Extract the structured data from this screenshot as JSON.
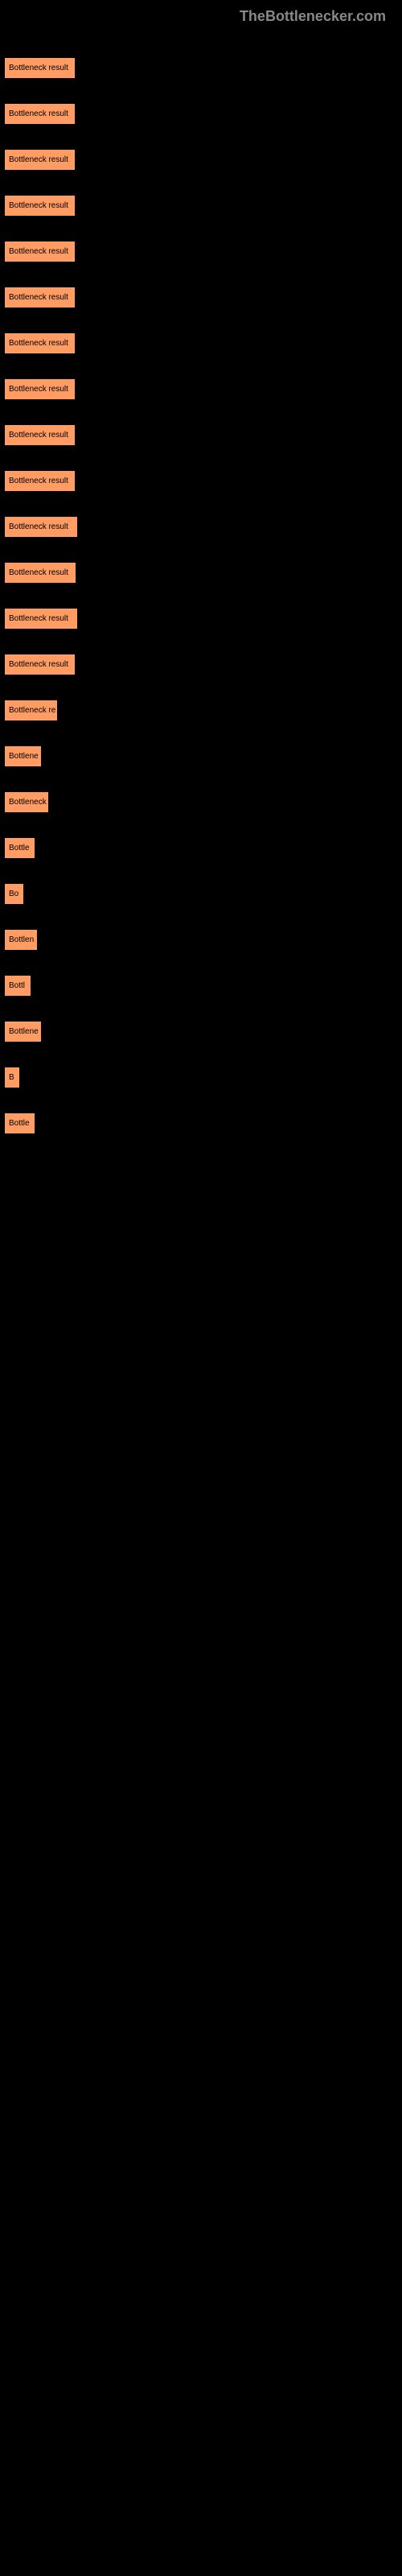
{
  "header": {
    "logo": "TheBottlenecker.com"
  },
  "chart": {
    "type": "bar",
    "bar_color": "#ff9c64",
    "background_color": "#000000",
    "text_color": "#000000",
    "font_size": 10,
    "bars": [
      {
        "label": "Bottleneck result",
        "width": 77
      },
      {
        "label": "Bottleneck result",
        "width": 77
      },
      {
        "label": "Bottleneck result",
        "width": 77
      },
      {
        "label": "Bottleneck result",
        "width": 77
      },
      {
        "label": "Bottleneck result",
        "width": 77
      },
      {
        "label": "Bottleneck result",
        "width": 77
      },
      {
        "label": "Bottleneck result",
        "width": 77
      },
      {
        "label": "Bottleneck result",
        "width": 77
      },
      {
        "label": "Bottleneck result",
        "width": 77
      },
      {
        "label": "Bottleneck result",
        "width": 77
      },
      {
        "label": "Bottleneck result",
        "width": 80
      },
      {
        "label": "Bottleneck result",
        "width": 78
      },
      {
        "label": "Bottleneck result",
        "width": 80
      },
      {
        "label": "Bottleneck result",
        "width": 77
      },
      {
        "label": "Bottleneck re",
        "width": 55
      },
      {
        "label": "Bottlene",
        "width": 35
      },
      {
        "label": "Bottleneck",
        "width": 44
      },
      {
        "label": "Bottle",
        "width": 27
      },
      {
        "label": "Bo",
        "width": 13
      },
      {
        "label": "Bottlen",
        "width": 30
      },
      {
        "label": "Bottl",
        "width": 22
      },
      {
        "label": "Bottlene",
        "width": 35
      },
      {
        "label": "B",
        "width": 8
      },
      {
        "label": "Bottle",
        "width": 27
      }
    ]
  }
}
